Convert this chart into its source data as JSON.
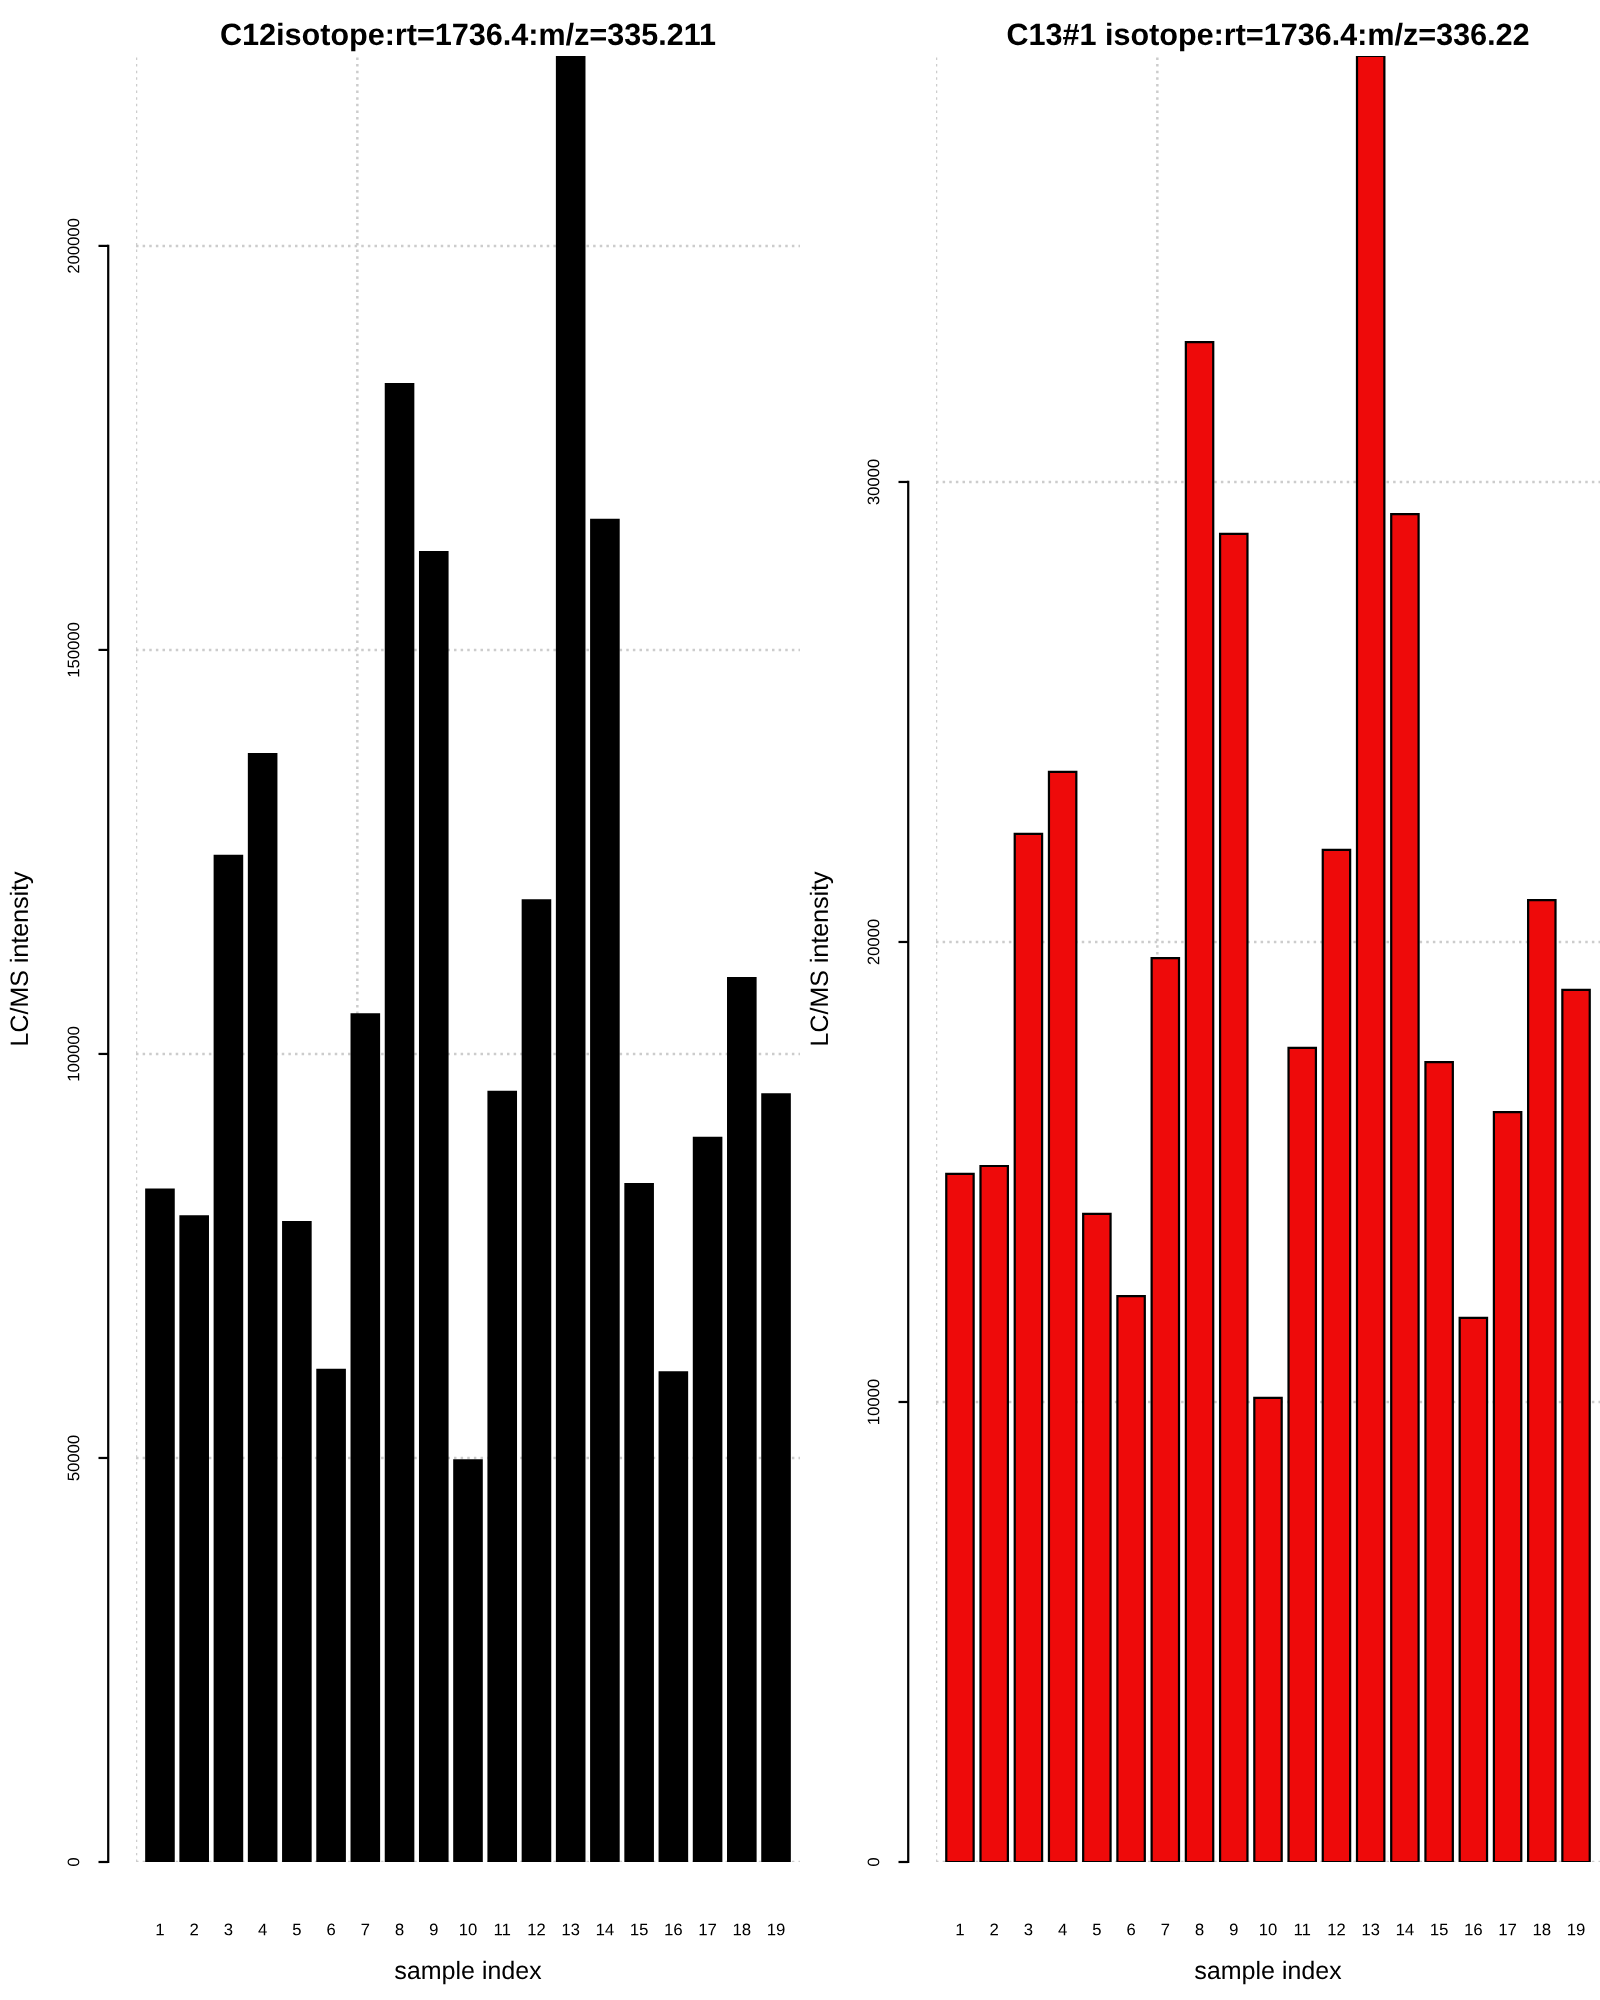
{
  "chart_data": [
    {
      "type": "bar",
      "title": "C12isotope:rt=1736.4:m/z=335.211",
      "xlabel": "sample index",
      "ylabel": "LC/MS intensity",
      "categories": [
        "1",
        "2",
        "3",
        "4",
        "5",
        "6",
        "7",
        "8",
        "9",
        "10",
        "11",
        "12",
        "13",
        "14",
        "15",
        "16",
        "17",
        "18",
        "19"
      ],
      "series": [
        {
          "color": "#000000",
          "values": [
            83200,
            79900,
            124500,
            137100,
            79200,
            60900,
            104900,
            182900,
            162100,
            49700,
            95300,
            119000,
            223500,
            166100,
            83900,
            60600,
            89600,
            109400,
            95000
          ]
        }
      ],
      "ylim": [
        0,
        223500
      ],
      "yticks": [
        0,
        50000,
        100000,
        150000,
        200000
      ],
      "grid": true
    },
    {
      "type": "bar",
      "title": "C13#1 isotope:rt=1736.4:m/z=336.22",
      "xlabel": "sample index",
      "ylabel": "LC/MS intensity",
      "categories": [
        "1",
        "2",
        "3",
        "4",
        "5",
        "6",
        "7",
        "8",
        "9",
        "10",
        "11",
        "12",
        "13",
        "14",
        "15",
        "16",
        "17",
        "18",
        "19"
      ],
      "series": [
        {
          "color": "#ee0a0a",
          "values": [
            14960,
            15130,
            22350,
            23700,
            14090,
            12300,
            19650,
            33040,
            28870,
            10090,
            17700,
            22000,
            39260,
            29300,
            17390,
            11830,
            16300,
            20910,
            18960
          ]
        }
      ],
      "ylim": [
        0,
        39260
      ],
      "yticks": [
        0,
        10000,
        20000,
        30000
      ],
      "grid": true
    }
  ]
}
